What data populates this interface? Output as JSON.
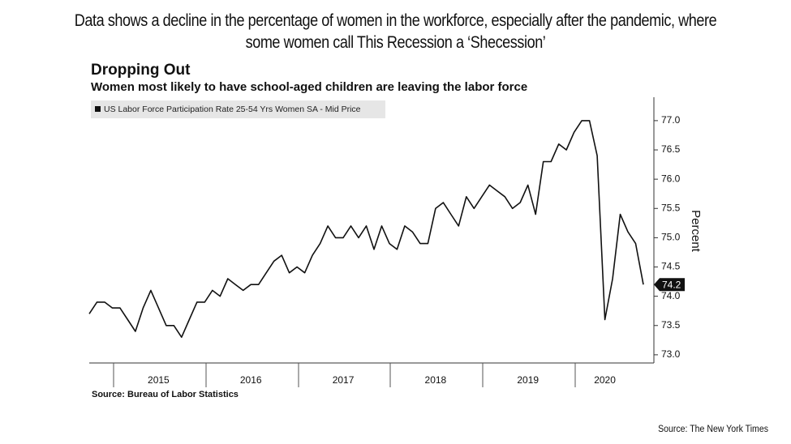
{
  "caption": [
    "Data shows a decline in the percentage of women in the workforce, especially after the pandemic, where",
    "some women call This Recession a ‘Shecession’"
  ],
  "chart_data": {
    "type": "line",
    "title": "Dropping Out",
    "subtitle": "Women most likely to have school-aged children are leaving the labor force",
    "y_axis_label": "Percent",
    "source": "Source: Bureau of Labor Statistics",
    "categories": [
      null,
      null,
      null,
      null,
      null,
      null,
      null,
      null,
      null,
      "2015",
      null,
      null,
      null,
      null,
      null,
      null,
      null,
      null,
      null,
      null,
      null,
      "2016",
      null,
      null,
      null,
      null,
      null,
      null,
      null,
      null,
      null,
      null,
      null,
      "2017",
      null,
      null,
      null,
      null,
      null,
      null,
      null,
      null,
      null,
      null,
      null,
      "2018",
      null,
      null,
      null,
      null,
      null,
      null,
      null,
      null,
      null,
      null,
      null,
      "2019",
      null,
      null,
      null,
      null,
      null,
      null,
      null,
      null,
      null,
      "2020",
      null,
      null,
      null,
      null,
      null
    ],
    "series": [
      {
        "name": "US Labor Force Participation Rate 25-54 Yrs Women SA - Mid Price",
        "color": "#111111",
        "values": [
          73.7,
          73.9,
          73.9,
          73.8,
          73.8,
          73.6,
          73.4,
          73.8,
          74.1,
          73.8,
          73.5,
          73.5,
          73.3,
          73.6,
          73.9,
          73.9,
          74.1,
          74.0,
          74.3,
          74.2,
          74.1,
          74.2,
          74.2,
          74.4,
          74.6,
          74.7,
          74.4,
          74.5,
          74.4,
          74.7,
          74.9,
          75.2,
          75.0,
          75.0,
          75.2,
          75.0,
          75.2,
          74.8,
          75.2,
          74.9,
          74.8,
          75.2,
          75.1,
          74.9,
          74.9,
          75.5,
          75.6,
          75.4,
          75.2,
          75.7,
          75.5,
          75.7,
          75.9,
          75.8,
          75.7,
          75.5,
          75.6,
          75.9,
          75.4,
          76.3,
          76.3,
          76.6,
          76.5,
          76.8,
          77.0,
          77.0,
          76.4,
          73.6,
          74.3,
          75.4,
          75.1,
          74.9,
          74.2
        ]
      }
    ],
    "ylim": [
      72.86,
      77.4
    ],
    "yticks": [
      {
        "value": 73,
        "label": "73.0"
      },
      73.5,
      {
        "value": 74,
        "label": "74.0"
      },
      74.5,
      {
        "value": 75,
        "label": "75.0"
      },
      75.5,
      {
        "value": 76,
        "label": "76.0"
      },
      76.5,
      {
        "value": 77,
        "label": "77.0"
      }
    ],
    "grid": false
  },
  "footer": "Source: The New York Times"
}
